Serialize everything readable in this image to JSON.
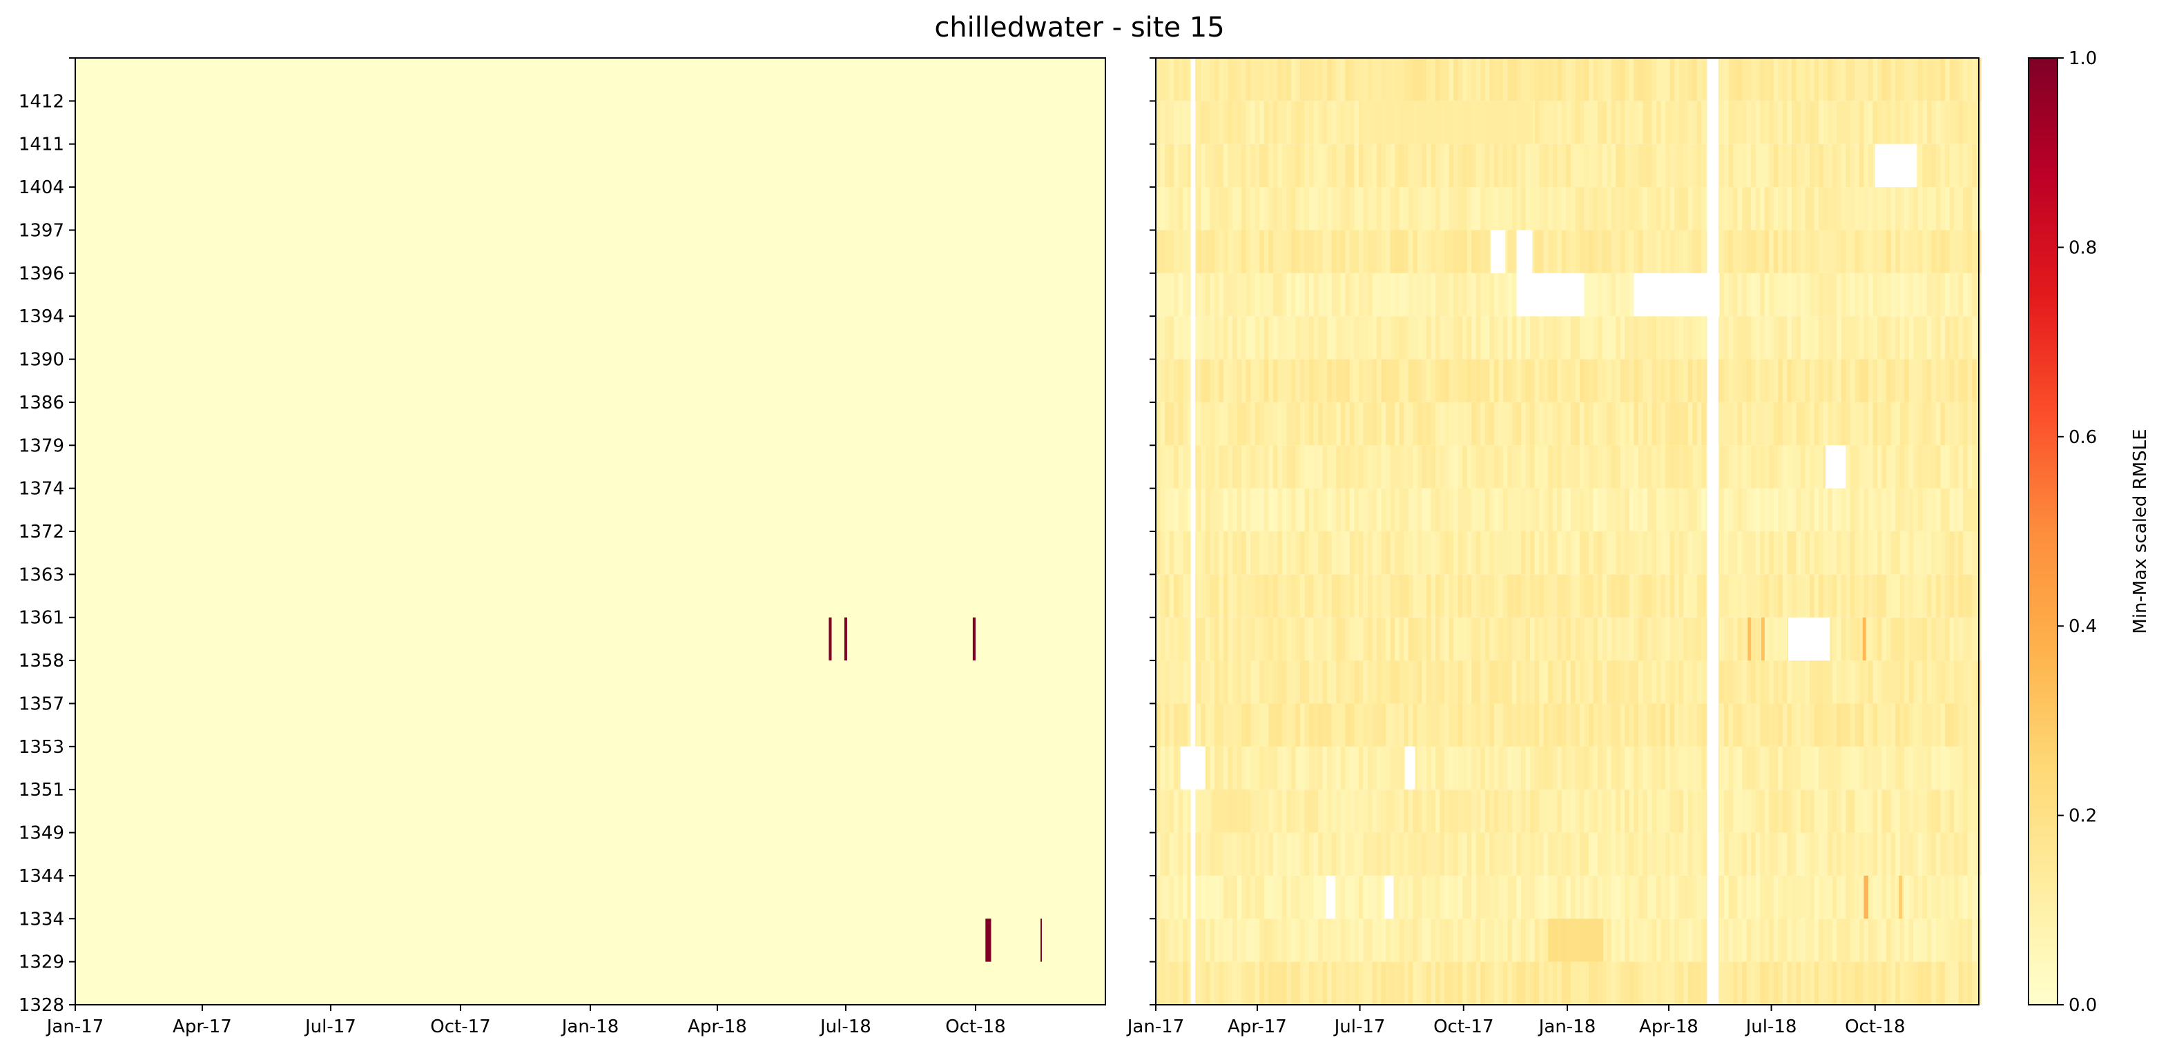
{
  "chart_data": {
    "type": "heatmap",
    "title": "chilledwater - site 15",
    "x_range": [
      "2017-01-01",
      "2019-01-01"
    ],
    "x_ticks": [
      {
        "label": "Jan-17",
        "date": "2017-01-01"
      },
      {
        "label": "Apr-17",
        "date": "2017-04-01"
      },
      {
        "label": "Jul-17",
        "date": "2017-07-01"
      },
      {
        "label": "Oct-17",
        "date": "2017-10-01"
      },
      {
        "label": "Jan-18",
        "date": "2018-01-01"
      },
      {
        "label": "Apr-18",
        "date": "2018-04-01"
      },
      {
        "label": "Jul-18",
        "date": "2018-07-01"
      },
      {
        "label": "Oct-18",
        "date": "2018-10-01"
      }
    ],
    "buildings": [
      "1328",
      "1329",
      "1334",
      "1344",
      "1349",
      "1351",
      "1353",
      "1357",
      "1358",
      "1361",
      "1363",
      "1372",
      "1374",
      "1379",
      "1386",
      "1390",
      "1394",
      "1396",
      "1397",
      "1404",
      "1411",
      "1412"
    ],
    "colorbar": {
      "label": "Min-Max scaled RMSLE",
      "colormap": "YlOrRd",
      "range": [
        0,
        1
      ],
      "ticks": [
        "0.0",
        "0.2",
        "0.4",
        "0.6",
        "0.8",
        "1.0"
      ]
    },
    "panels": [
      {
        "name": "left",
        "x_end": "2018-12-31",
        "base_value": 0.0,
        "highlights": [
          {
            "building": "1358",
            "date": "2018-06-19",
            "days": 2,
            "value": 1.0
          },
          {
            "building": "1358",
            "date": "2018-06-30",
            "days": 2,
            "value": 1.0
          },
          {
            "building": "1358",
            "date": "2018-09-29",
            "days": 2,
            "value": 1.0
          },
          {
            "building": "1329",
            "date": "2018-10-08",
            "days": 4,
            "value": 1.0
          },
          {
            "building": "1329",
            "date": "2018-11-16",
            "days": 1,
            "value": 1.0
          }
        ]
      },
      {
        "name": "right",
        "x_end": "2018-12-31",
        "base_value": 0.06,
        "missing_all_buildings": [
          {
            "start": "2017-02-01",
            "end": "2017-02-04"
          },
          {
            "start": "2018-05-05",
            "end": "2018-05-14"
          }
        ],
        "missing": [
          {
            "building": "1404",
            "start": "2018-10-01",
            "end": "2018-11-06"
          },
          {
            "building": "1396",
            "start": "2017-10-25",
            "end": "2017-11-06"
          },
          {
            "building": "1396",
            "start": "2017-11-17",
            "end": "2017-11-30"
          },
          {
            "building": "1394",
            "start": "2017-11-17",
            "end": "2018-01-15"
          },
          {
            "building": "1394",
            "start": "2018-03-01",
            "end": "2018-05-15"
          },
          {
            "building": "1374",
            "start": "2018-08-18",
            "end": "2018-09-04"
          },
          {
            "building": "1358",
            "start": "2018-07-16",
            "end": "2018-08-21"
          },
          {
            "building": "1351",
            "start": "2017-01-23",
            "end": "2017-02-13"
          },
          {
            "building": "1351",
            "start": "2017-08-10",
            "end": "2017-08-18"
          },
          {
            "building": "1334",
            "start": "2017-06-01",
            "end": "2017-06-08"
          },
          {
            "building": "1334",
            "start": "2017-07-23",
            "end": "2017-07-30"
          }
        ],
        "highlights": [
          {
            "building": "1329",
            "start": "2017-12-15",
            "end": "2018-02-01",
            "value": 0.22
          },
          {
            "building": "1358",
            "start": "2018-06-10",
            "end": "2018-06-12",
            "value": 0.35
          },
          {
            "building": "1358",
            "start": "2018-06-22",
            "end": "2018-06-24",
            "value": 0.35
          },
          {
            "building": "1358",
            "start": "2018-09-20",
            "end": "2018-09-22",
            "value": 0.38
          },
          {
            "building": "1334",
            "start": "2018-09-21",
            "end": "2018-09-24",
            "value": 0.4
          },
          {
            "building": "1334",
            "start": "2018-10-22",
            "end": "2018-10-24",
            "value": 0.3
          },
          {
            "building": "1411",
            "start": "2017-07-01",
            "end": "2017-12-01",
            "value": 0.13
          },
          {
            "building": "1349",
            "start": "2017-02-20",
            "end": "2017-03-25",
            "value": 0.15
          }
        ]
      }
    ]
  }
}
